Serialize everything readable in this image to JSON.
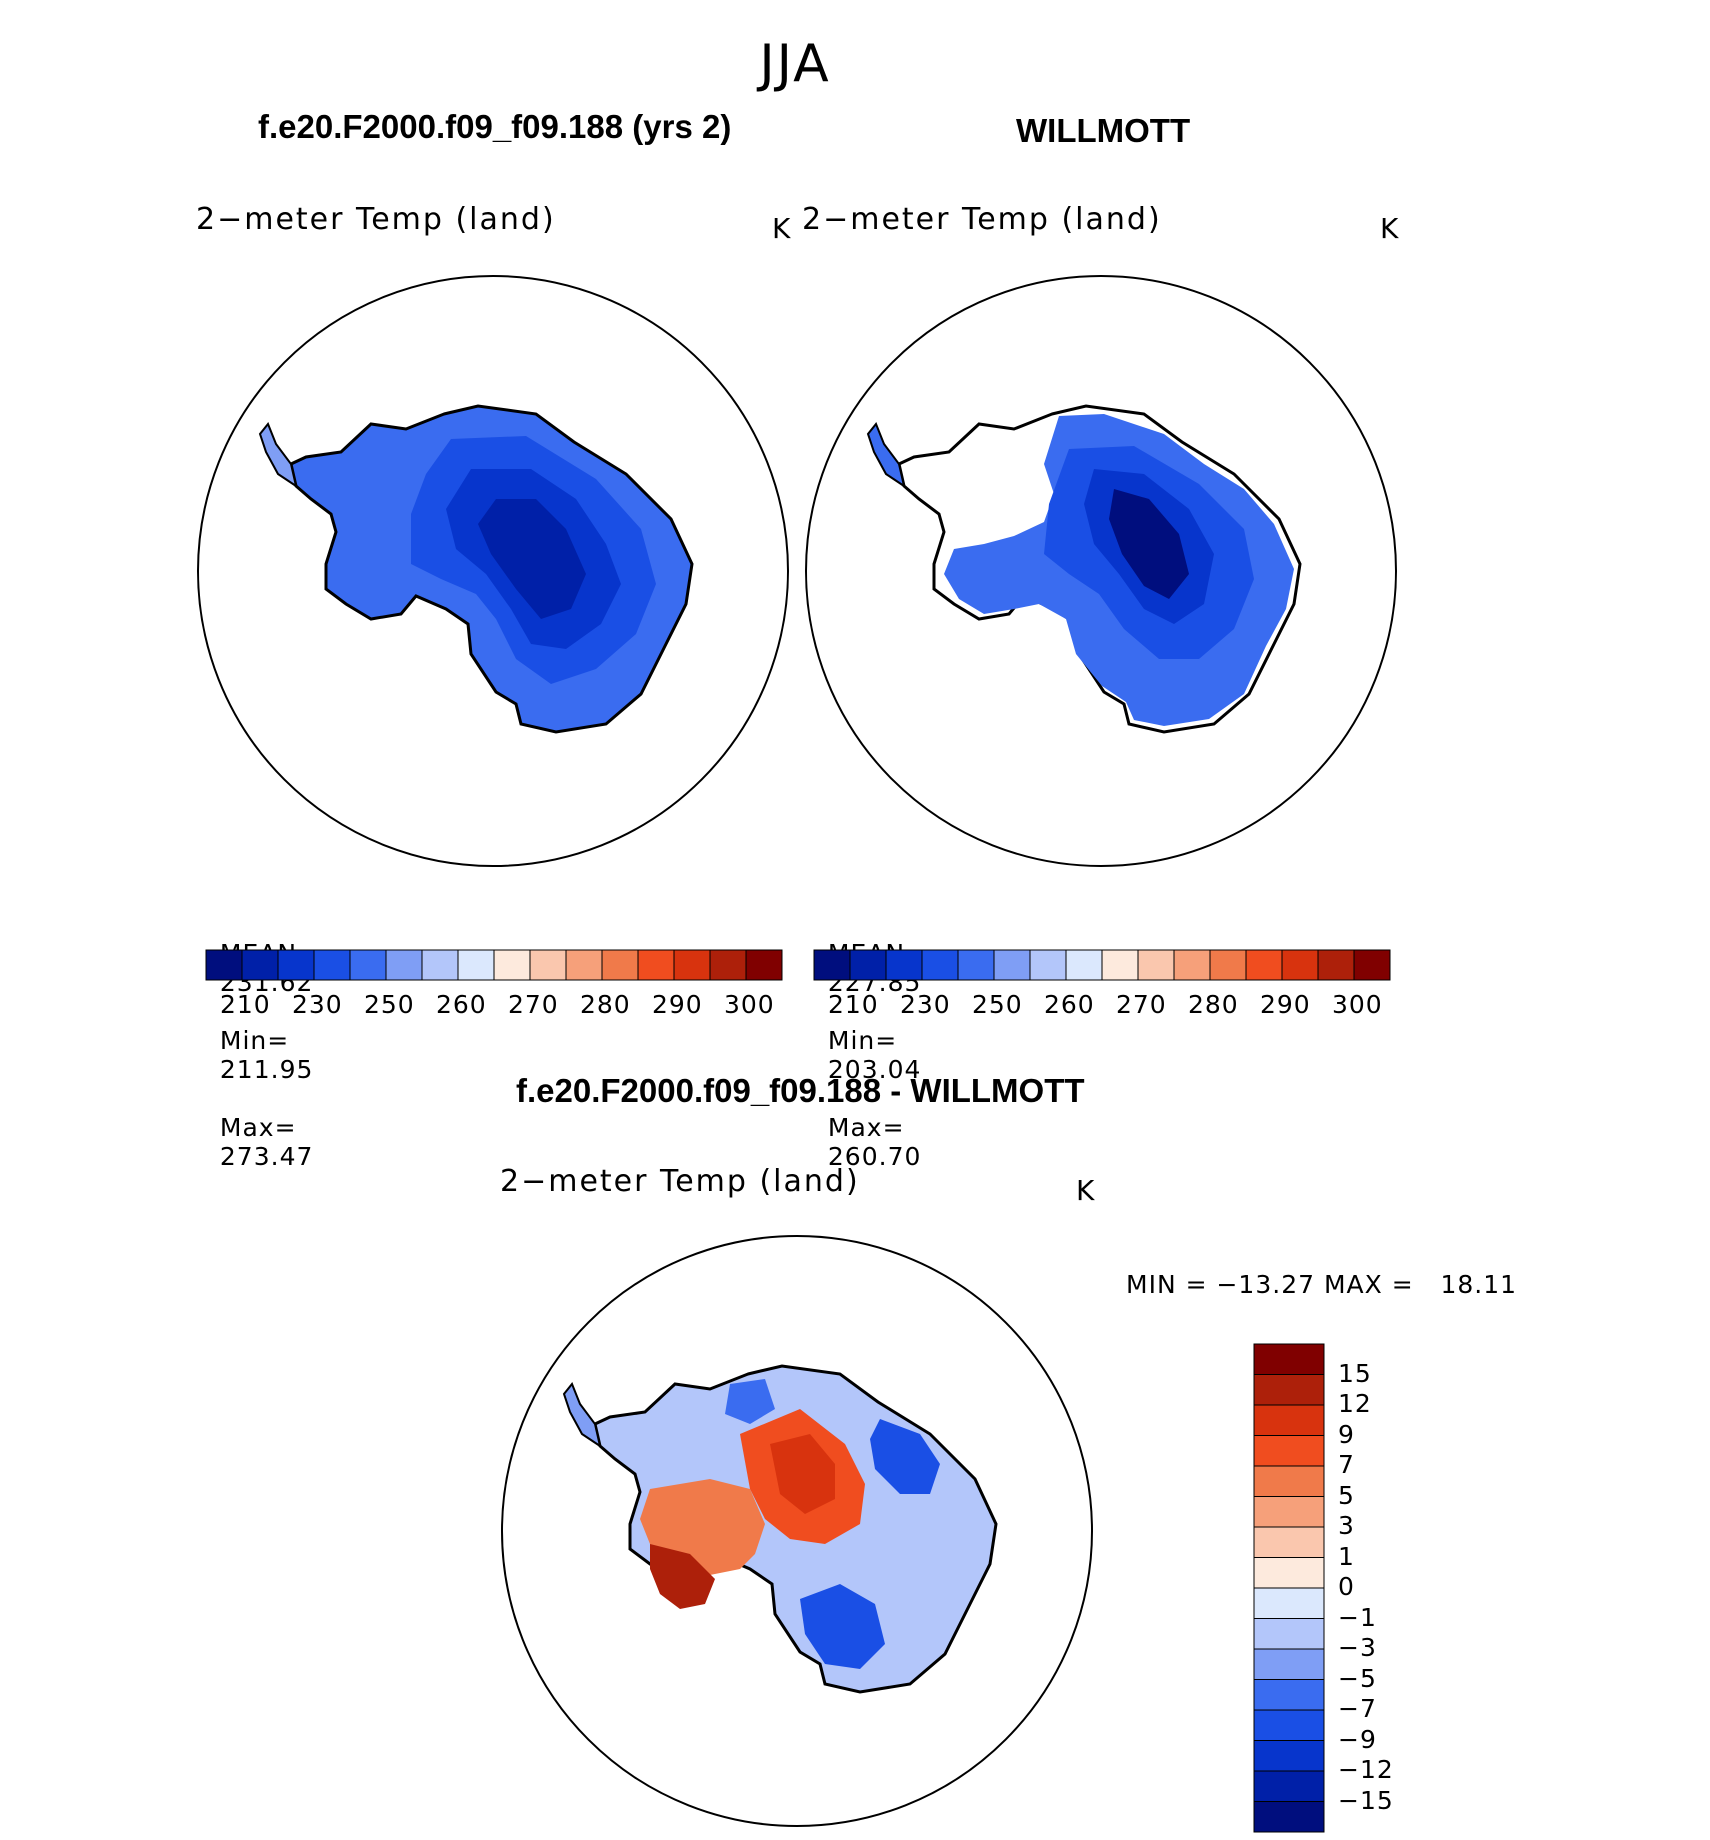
{
  "figure": {
    "season": "JJA",
    "unit": "K"
  },
  "panels": [
    {
      "case_title": "f.e20.F2000.f09_f09.188 (yrs 2)",
      "variable": "2−meter Temp (land)",
      "unit": "K",
      "stats": {
        "mean_label": "MEAN=",
        "mean": "231.62",
        "min_label": "Min=",
        "min": "211.95",
        "max_label": "Max=",
        "max": "273.47"
      }
    },
    {
      "case_title": "WILLMOTT",
      "variable": "2−meter Temp (land)",
      "unit": "K",
      "stats": {
        "mean_label": "MEAN=",
        "mean": "227.85",
        "min_label": "Min=",
        "min": "203.04",
        "max_label": "Max=",
        "max": "260.70"
      }
    },
    {
      "case_title": "f.e20.F2000.f09_f09.188 - WILLMOTT",
      "variable": "2−meter Temp (land)",
      "unit": "K",
      "minmax": "MIN = −13.27 MAX =   18.11"
    }
  ],
  "abs_colorbar": {
    "colors": [
      "#000e7e",
      "#0020a8",
      "#0735cc",
      "#1a4fe5",
      "#3a6cf0",
      "#7f9ef5",
      "#b3c6fa",
      "#dbe8fd",
      "#fdeadd",
      "#fac7ae",
      "#f6a07a",
      "#f07a4a",
      "#f04d1f",
      "#d8330e",
      "#ad200a",
      "#800000"
    ],
    "tick_labels": [
      "210",
      "230",
      "250",
      "260",
      "270",
      "280",
      "290",
      "300"
    ]
  },
  "diff_colorbar": {
    "colors": [
      "#000e7e",
      "#0020a8",
      "#0735cc",
      "#1a4fe5",
      "#3a6cf0",
      "#7f9ef5",
      "#b3c6fa",
      "#dbe8fd",
      "#fdeadd",
      "#fac7ae",
      "#f6a07a",
      "#f07a4a",
      "#f04d1f",
      "#d8330e",
      "#ad200a",
      "#800000"
    ],
    "tick_labels": [
      "15",
      "12",
      "9",
      "7",
      "5",
      "3",
      "1",
      "0",
      "−1",
      "−3",
      "−5",
      "−7",
      "−9",
      "−12",
      "−15"
    ]
  },
  "chart_data": [
    {
      "type": "map",
      "projection": "south polar stereographic",
      "title": "f.e20.F2000.f09_f09.188 (yrs 2)",
      "variable": "2-meter Temp (land)",
      "units": "K",
      "mean": 231.62,
      "min": 211.95,
      "max": 273.47,
      "contour_levels": [
        210,
        220,
        230,
        240,
        250,
        255,
        260,
        265,
        270,
        275,
        280,
        285,
        290,
        295,
        300
      ]
    },
    {
      "type": "map",
      "projection": "south polar stereographic",
      "title": "WILLMOTT",
      "variable": "2-meter Temp (land)",
      "units": "K",
      "mean": 227.85,
      "min": 203.04,
      "max": 260.7,
      "contour_levels": [
        210,
        220,
        230,
        240,
        250,
        255,
        260,
        265,
        270,
        275,
        280,
        285,
        290,
        295,
        300
      ]
    },
    {
      "type": "map",
      "projection": "south polar stereographic",
      "title": "f.e20.F2000.f09_f09.188 - WILLMOTT",
      "variable": "2-meter Temp (land)",
      "units": "K",
      "min": -13.27,
      "max": 18.11,
      "contour_levels": [
        -15,
        -12,
        -9,
        -7,
        -5,
        -3,
        -1,
        0,
        1,
        3,
        5,
        7,
        9,
        12,
        15
      ]
    }
  ]
}
